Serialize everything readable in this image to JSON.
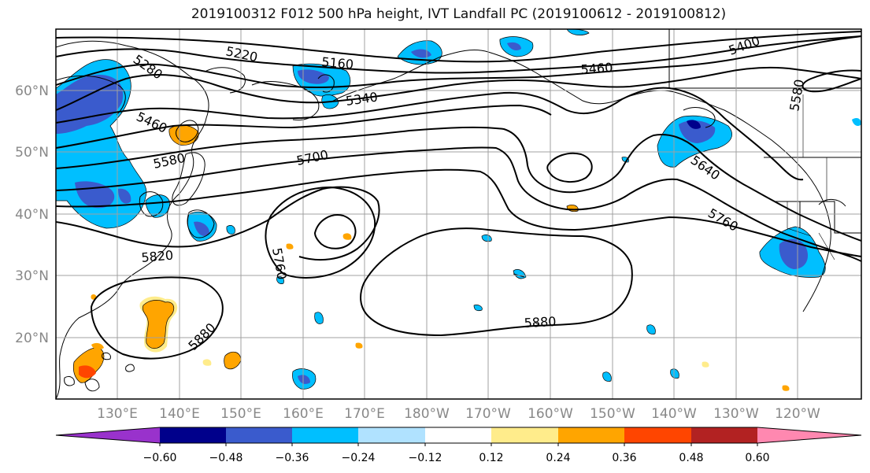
{
  "title": "2019100312 F012 500 hPa height, IVT Landfall PC (2019100612 - 2019100812)",
  "lat_labels": [
    "60°N",
    "50°N",
    "40°N",
    "30°N",
    "20°N"
  ],
  "lon_labels": [
    "130°E",
    "140°E",
    "150°E",
    "160°E",
    "170°E",
    "180°W",
    "170°W",
    "160°W",
    "150°W",
    "140°W",
    "130°W",
    "120°W"
  ],
  "contour_labels": [
    "5280",
    "5220",
    "5160",
    "5460",
    "5400",
    "5580",
    "5460",
    "5340",
    "5580",
    "5700",
    "5640",
    "5760",
    "5820",
    "5760",
    "5880",
    "5880"
  ],
  "colorbar": {
    "ticks": [
      "−0.60",
      "−0.48",
      "−0.36",
      "−0.24",
      "−0.12",
      "0.12",
      "0.24",
      "0.36",
      "0.48",
      "0.60"
    ],
    "colors": [
      "#9932cc",
      "#00008b",
      "#3a5bcd",
      "#00bfff",
      "#b0e2ff",
      "#ffffff",
      "#ffec8b",
      "#ffa500",
      "#ff4500",
      "#b22222",
      "#ff88b0"
    ]
  }
}
